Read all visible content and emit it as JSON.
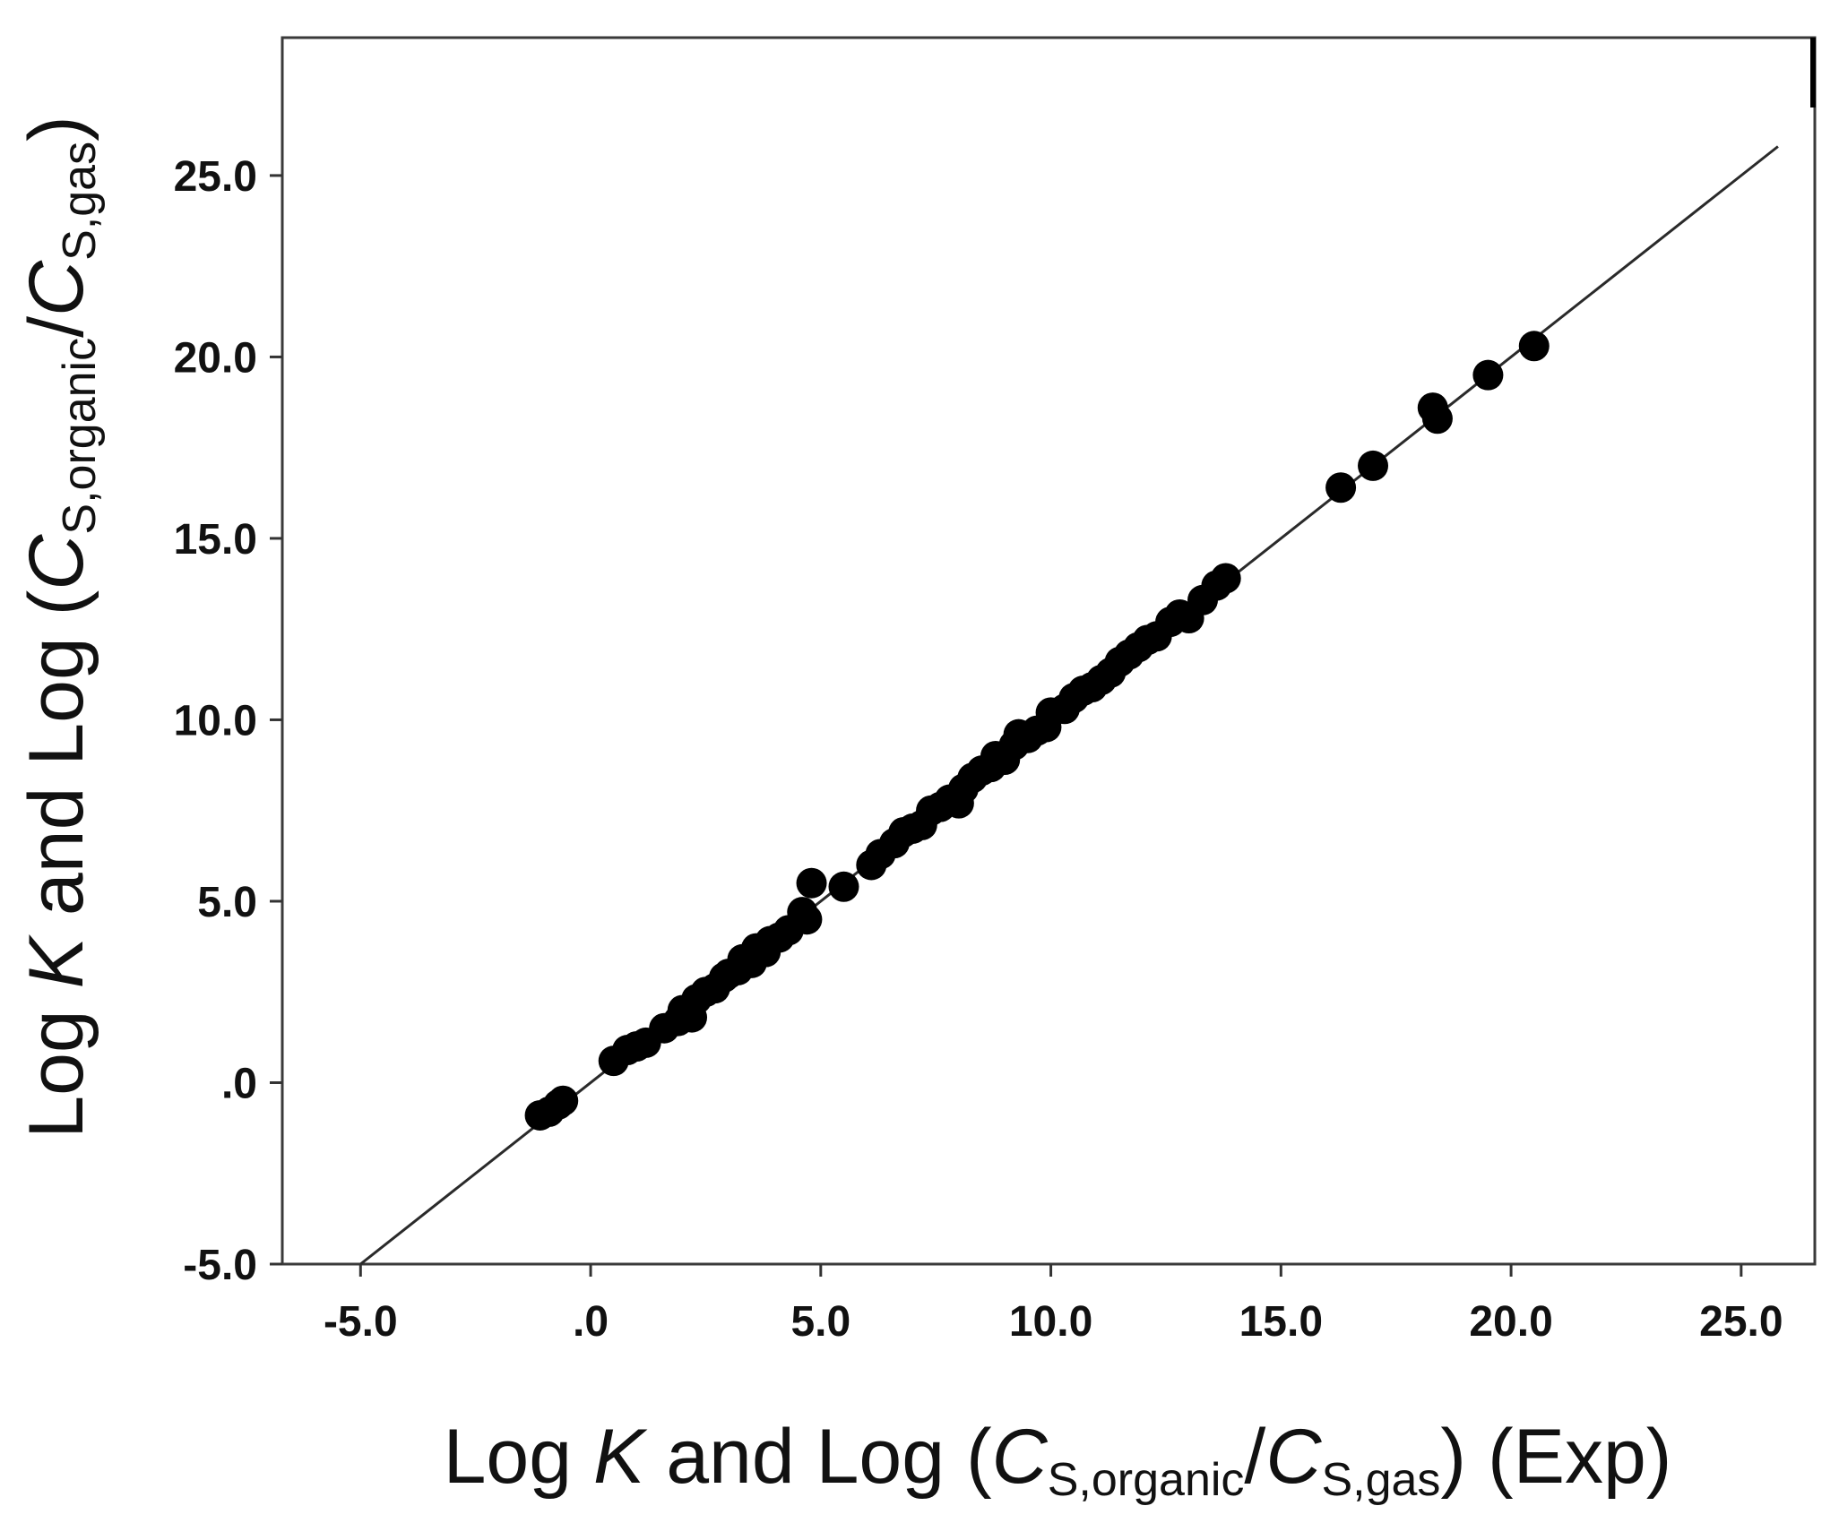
{
  "chart_data": {
    "type": "scatter",
    "title": "",
    "xlabel": {
      "parts": [
        "Log ",
        "K",
        " and Log (",
        "C",
        "S,organic",
        "/",
        "C",
        "S,gas",
        ")  (Exp)"
      ]
    },
    "ylabel": {
      "parts": [
        "Log ",
        "K",
        " and Log (",
        "C",
        "S,organic",
        "/",
        "C",
        "S,gas",
        ")"
      ]
    },
    "xlim": [
      -6.7,
      26.6
    ],
    "ylim": [
      -5.0,
      28.8
    ],
    "x_ticks": [
      -5,
      0,
      5,
      10,
      15,
      20,
      25
    ],
    "x_tick_labels": [
      "-5.0",
      ".0",
      "5.0",
      "10.0",
      "15.0",
      "20.0",
      "25.0"
    ],
    "y_ticks": [
      -5,
      0,
      5,
      10,
      15,
      20,
      25
    ],
    "y_tick_labels": [
      "-5.0",
      ".0",
      "5.0",
      "10.0",
      "15.0",
      "20.0",
      "25.0"
    ],
    "grid": false,
    "legend": "none",
    "marker_color": "#000000",
    "reference_line": {
      "x": [
        -5.0,
        25.8
      ],
      "y": [
        -5.0,
        25.8
      ]
    },
    "points": [
      [
        -1.1,
        -0.9
      ],
      [
        -0.9,
        -0.8
      ],
      [
        -0.7,
        -0.6
      ],
      [
        -0.6,
        -0.5
      ],
      [
        0.5,
        0.6
      ],
      [
        0.8,
        0.9
      ],
      [
        1.0,
        1.0
      ],
      [
        1.2,
        1.1
      ],
      [
        1.6,
        1.5
      ],
      [
        1.9,
        1.7
      ],
      [
        2.0,
        2.0
      ],
      [
        2.2,
        1.8
      ],
      [
        2.3,
        2.3
      ],
      [
        2.5,
        2.5
      ],
      [
        2.7,
        2.6
      ],
      [
        2.9,
        2.9
      ],
      [
        3.0,
        3.0
      ],
      [
        3.2,
        3.1
      ],
      [
        3.3,
        3.4
      ],
      [
        3.5,
        3.3
      ],
      [
        3.6,
        3.7
      ],
      [
        3.8,
        3.6
      ],
      [
        3.9,
        3.9
      ],
      [
        4.1,
        4.0
      ],
      [
        4.3,
        4.2
      ],
      [
        4.6,
        4.7
      ],
      [
        4.7,
        4.5
      ],
      [
        4.8,
        5.5
      ],
      [
        5.5,
        5.4
      ],
      [
        6.1,
        6.0
      ],
      [
        6.3,
        6.3
      ],
      [
        6.6,
        6.6
      ],
      [
        6.8,
        6.9
      ],
      [
        7.0,
        7.0
      ],
      [
        7.2,
        7.1
      ],
      [
        7.4,
        7.5
      ],
      [
        7.6,
        7.6
      ],
      [
        7.8,
        7.8
      ],
      [
        8.0,
        7.7
      ],
      [
        8.1,
        8.1
      ],
      [
        8.3,
        8.4
      ],
      [
        8.5,
        8.6
      ],
      [
        8.7,
        8.7
      ],
      [
        8.8,
        9.0
      ],
      [
        9.0,
        8.9
      ],
      [
        9.2,
        9.3
      ],
      [
        9.3,
        9.6
      ],
      [
        9.5,
        9.5
      ],
      [
        9.7,
        9.7
      ],
      [
        9.9,
        9.8
      ],
      [
        10.0,
        10.2
      ],
      [
        10.3,
        10.3
      ],
      [
        10.5,
        10.6
      ],
      [
        10.7,
        10.8
      ],
      [
        10.9,
        10.9
      ],
      [
        11.1,
        11.1
      ],
      [
        11.3,
        11.3
      ],
      [
        11.5,
        11.6
      ],
      [
        11.7,
        11.8
      ],
      [
        11.9,
        12.0
      ],
      [
        12.1,
        12.2
      ],
      [
        12.3,
        12.3
      ],
      [
        12.6,
        12.7
      ],
      [
        12.8,
        12.9
      ],
      [
        13.0,
        12.8
      ],
      [
        13.3,
        13.3
      ],
      [
        13.6,
        13.7
      ],
      [
        13.8,
        13.9
      ],
      [
        16.3,
        16.4
      ],
      [
        17.0,
        17.0
      ],
      [
        18.3,
        18.6
      ],
      [
        18.4,
        18.3
      ],
      [
        19.5,
        19.5
      ],
      [
        20.5,
        20.3
      ]
    ]
  }
}
